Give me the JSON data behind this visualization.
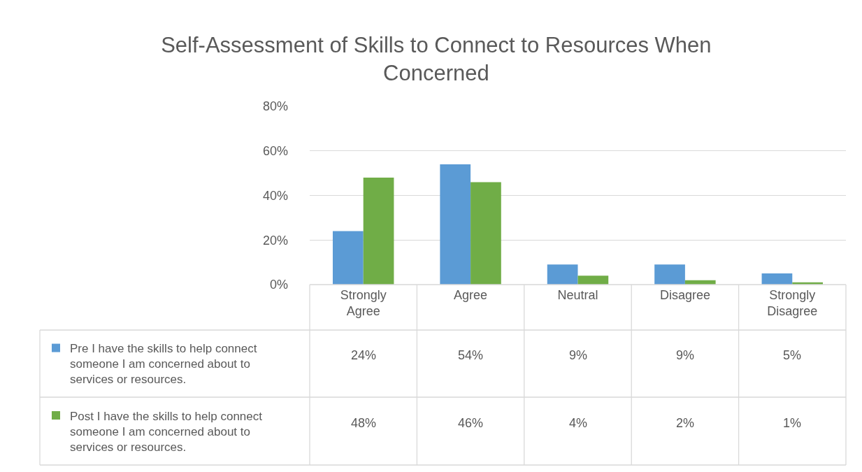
{
  "chart_data": {
    "type": "bar",
    "title": "Self-Assessment of Skills to Connect to Resources When Concerned",
    "categories": [
      "Strongly Agree",
      "Agree",
      "Neutral",
      "Disagree",
      "Strongly Disagree"
    ],
    "series": [
      {
        "name": "Pre I have the skills to help connect someone I am concerned about to services or resources.",
        "color": "#5b9bd5",
        "values": [
          24,
          54,
          9,
          9,
          5
        ],
        "value_labels": [
          "24%",
          "54%",
          "9%",
          "9%",
          "5%"
        ]
      },
      {
        "name": "Post I have the skills to help connect someone I am concerned about to services or resources.",
        "color": "#70ad47",
        "values": [
          48,
          46,
          4,
          2,
          1
        ],
        "value_labels": [
          "48%",
          "46%",
          "4%",
          "2%",
          "1%"
        ]
      }
    ],
    "ylim": [
      0,
      80
    ],
    "yticks": [
      {
        "value": 0,
        "label": "0%"
      },
      {
        "value": 20,
        "label": "20%"
      },
      {
        "value": 40,
        "label": "40%"
      },
      {
        "value": 60,
        "label": "60%"
      },
      {
        "value": 80,
        "label": "80%"
      }
    ],
    "grid": "y",
    "legend": "bottom"
  }
}
